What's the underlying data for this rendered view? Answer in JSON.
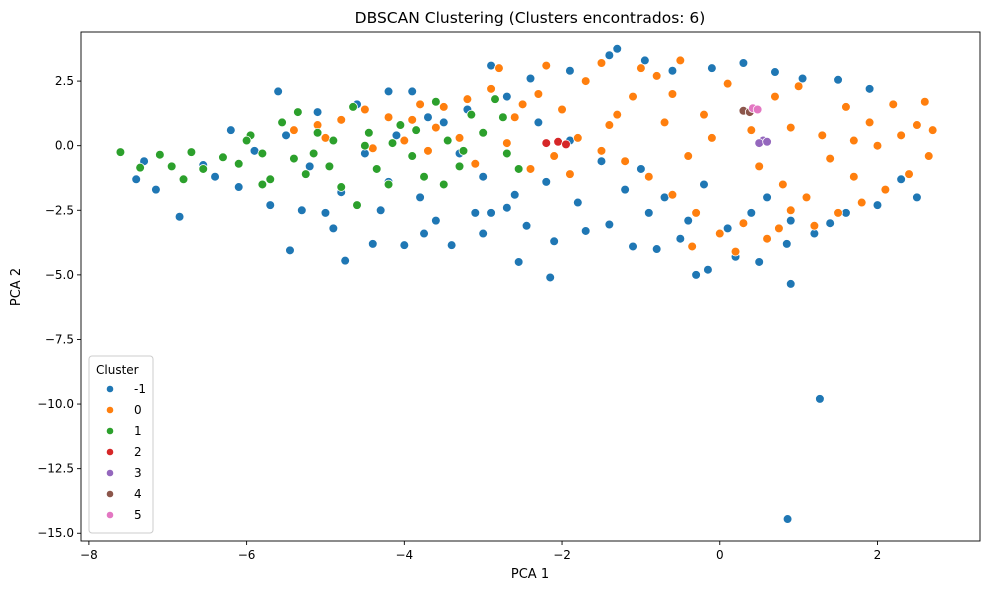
{
  "chart_data": {
    "type": "scatter",
    "title": "DBSCAN Clustering (Clusters encontrados: 6)",
    "xlabel": "PCA 1",
    "ylabel": "PCA 2",
    "xlim": [
      -8.1,
      3.3
    ],
    "ylim": [
      -15.3,
      4.4
    ],
    "x_ticks": [
      -8,
      -6,
      -4,
      -2,
      0,
      2
    ],
    "y_ticks": [
      2.5,
      0.0,
      -2.5,
      -5.0,
      -7.5,
      -10.0,
      -12.5,
      -15.0
    ],
    "grid": false,
    "legend": {
      "title": "Cluster",
      "position": "lower-left"
    },
    "series": [
      {
        "name": "-1",
        "color": "#1f77b4",
        "points": [
          [
            0.86,
            -14.45
          ],
          [
            1.27,
            -9.8
          ],
          [
            0.9,
            -5.35
          ],
          [
            -2.15,
            -5.1
          ],
          [
            -2.55,
            -4.5
          ],
          [
            -4.75,
            -4.45
          ],
          [
            -5.45,
            -4.05
          ],
          [
            -0.3,
            -5.0
          ],
          [
            -0.15,
            -4.8
          ],
          [
            -1.1,
            -3.9
          ],
          [
            -7.3,
            -0.6
          ],
          [
            -7.15,
            -1.7
          ],
          [
            -6.85,
            -2.75
          ],
          [
            -6.4,
            -1.2
          ],
          [
            -6.1,
            -1.6
          ],
          [
            -5.7,
            -2.3
          ],
          [
            -5.3,
            -2.5
          ],
          [
            -4.9,
            -3.2
          ],
          [
            -4.4,
            -3.8
          ],
          [
            -4.0,
            -3.85
          ],
          [
            -3.75,
            -3.4
          ],
          [
            -3.4,
            -3.85
          ],
          [
            -3.0,
            -3.4
          ],
          [
            -2.9,
            -2.6
          ],
          [
            -2.45,
            -3.1
          ],
          [
            -2.1,
            -3.7
          ],
          [
            -1.7,
            -3.3
          ],
          [
            -1.4,
            -3.05
          ],
          [
            -0.8,
            -4.0
          ],
          [
            -0.5,
            -3.6
          ],
          [
            0.2,
            -4.3
          ],
          [
            0.5,
            -4.5
          ],
          [
            0.85,
            -3.8
          ],
          [
            1.2,
            -3.4
          ],
          [
            1.6,
            -2.6
          ],
          [
            2.0,
            -2.3
          ],
          [
            2.3,
            -1.3
          ],
          [
            2.5,
            -2.0
          ],
          [
            -3.7,
            1.1
          ],
          [
            -3.9,
            2.1
          ],
          [
            -4.2,
            2.1
          ],
          [
            -4.6,
            1.6
          ],
          [
            -5.1,
            1.3
          ],
          [
            -5.6,
            2.1
          ],
          [
            -6.2,
            0.6
          ],
          [
            -5.9,
            -0.2
          ],
          [
            -6.55,
            -0.75
          ],
          [
            -7.4,
            -1.3
          ],
          [
            -2.9,
            3.1
          ],
          [
            -2.4,
            2.6
          ],
          [
            -1.9,
            2.9
          ],
          [
            -1.4,
            3.5
          ],
          [
            -1.3,
            3.75
          ],
          [
            -0.95,
            3.3
          ],
          [
            -0.6,
            2.9
          ],
          [
            -0.1,
            3.0
          ],
          [
            0.3,
            3.2
          ],
          [
            0.7,
            2.85
          ],
          [
            1.05,
            2.6
          ],
          [
            1.5,
            2.55
          ],
          [
            1.9,
            2.2
          ],
          [
            -3.3,
            -0.3
          ],
          [
            -3.0,
            -1.2
          ],
          [
            -2.6,
            -1.9
          ],
          [
            -2.2,
            -1.4
          ],
          [
            -1.8,
            -2.2
          ],
          [
            -1.2,
            -1.7
          ],
          [
            -0.9,
            -2.6
          ],
          [
            -0.4,
            -2.9
          ],
          [
            0.1,
            -3.2
          ],
          [
            0.4,
            -2.6
          ],
          [
            -4.3,
            -2.5
          ],
          [
            -3.6,
            -2.9
          ],
          [
            -3.1,
            -2.6
          ],
          [
            -2.7,
            -2.4
          ],
          [
            -4.8,
            -1.8
          ],
          [
            -5.0,
            -2.6
          ],
          [
            -4.1,
            0.4
          ],
          [
            -3.5,
            0.9
          ],
          [
            -3.2,
            1.4
          ],
          [
            -2.7,
            1.9
          ],
          [
            -2.3,
            0.9
          ],
          [
            -1.9,
            0.2
          ],
          [
            -1.5,
            -0.6
          ],
          [
            -1.0,
            -0.9
          ],
          [
            -0.7,
            -2.0
          ],
          [
            -0.2,
            -1.5
          ],
          [
            0.6,
            -2.0
          ],
          [
            0.9,
            -2.9
          ],
          [
            1.4,
            -3.0
          ],
          [
            -5.5,
            0.4
          ],
          [
            -5.2,
            -0.8
          ],
          [
            -4.5,
            -0.3
          ],
          [
            -4.2,
            -1.4
          ],
          [
            -3.8,
            -2.0
          ]
        ]
      },
      {
        "name": "0",
        "color": "#ff7f0e",
        "points": [
          [
            -3.5,
            1.5
          ],
          [
            -3.2,
            1.8
          ],
          [
            -2.9,
            2.2
          ],
          [
            -2.6,
            1.1
          ],
          [
            -2.3,
            2.0
          ],
          [
            -2.0,
            1.4
          ],
          [
            -1.7,
            2.5
          ],
          [
            -1.4,
            0.8
          ],
          [
            -1.1,
            1.9
          ],
          [
            -0.8,
            2.7
          ],
          [
            -0.5,
            3.3
          ],
          [
            -0.2,
            1.2
          ],
          [
            0.1,
            2.4
          ],
          [
            0.4,
            0.6
          ],
          [
            0.7,
            1.9
          ],
          [
            1.0,
            2.3
          ],
          [
            1.3,
            0.4
          ],
          [
            1.6,
            1.5
          ],
          [
            1.9,
            0.9
          ],
          [
            2.2,
            1.6
          ],
          [
            2.5,
            0.8
          ],
          [
            2.7,
            0.6
          ],
          [
            2.65,
            -0.4
          ],
          [
            2.4,
            -1.1
          ],
          [
            2.1,
            -1.7
          ],
          [
            1.8,
            -2.2
          ],
          [
            1.5,
            -2.6
          ],
          [
            1.2,
            -3.1
          ],
          [
            0.9,
            -2.5
          ],
          [
            0.6,
            -3.6
          ],
          [
            0.3,
            -3.0
          ],
          [
            0.0,
            -3.4
          ],
          [
            -0.3,
            -2.6
          ],
          [
            -0.6,
            -1.9
          ],
          [
            -0.9,
            -1.2
          ],
          [
            -1.2,
            -0.6
          ],
          [
            -1.5,
            -0.2
          ],
          [
            -1.8,
            0.3
          ],
          [
            -2.1,
            -0.4
          ],
          [
            -2.4,
            -0.9
          ],
          [
            -2.7,
            0.1
          ],
          [
            -3.0,
            0.5
          ],
          [
            -3.3,
            0.3
          ],
          [
            -3.6,
            0.7
          ],
          [
            -3.9,
            1.0
          ],
          [
            -4.2,
            1.1
          ],
          [
            -4.5,
            1.4
          ],
          [
            -4.8,
            1.0
          ],
          [
            -5.1,
            0.8
          ],
          [
            -5.4,
            0.6
          ],
          [
            -0.35,
            -3.9
          ],
          [
            0.2,
            -4.1
          ],
          [
            0.75,
            -3.2
          ],
          [
            1.1,
            -2.0
          ],
          [
            1.7,
            -1.2
          ],
          [
            2.0,
            0.0
          ],
          [
            2.3,
            0.4
          ],
          [
            -2.8,
            3.0
          ],
          [
            -2.2,
            3.1
          ],
          [
            -1.5,
            3.2
          ],
          [
            -1.0,
            3.0
          ],
          [
            -0.6,
            2.0
          ],
          [
            -0.1,
            0.3
          ],
          [
            0.5,
            -0.8
          ],
          [
            0.8,
            -1.5
          ],
          [
            1.4,
            -0.5
          ],
          [
            1.7,
            0.2
          ],
          [
            -0.4,
            -0.4
          ],
          [
            -1.3,
            1.2
          ],
          [
            -2.5,
            1.6
          ],
          [
            -3.1,
            -0.7
          ],
          [
            -3.7,
            -0.2
          ],
          [
            -4.0,
            0.2
          ],
          [
            -4.4,
            -0.1
          ],
          [
            -5.0,
            0.3
          ],
          [
            -3.8,
            1.6
          ],
          [
            -1.9,
            -1.1
          ],
          [
            -0.7,
            0.9
          ],
          [
            0.9,
            0.7
          ],
          [
            2.6,
            1.7
          ]
        ]
      },
      {
        "name": "1",
        "color": "#2ca02c",
        "points": [
          [
            -7.6,
            -0.25
          ],
          [
            -7.35,
            -0.85
          ],
          [
            -7.1,
            -0.35
          ],
          [
            -6.95,
            -0.8
          ],
          [
            -6.8,
            -1.3
          ],
          [
            -6.7,
            -0.25
          ],
          [
            -6.55,
            -0.9
          ],
          [
            -6.3,
            -0.45
          ],
          [
            -6.1,
            -0.7
          ],
          [
            -5.95,
            0.4
          ],
          [
            -5.8,
            -0.3
          ],
          [
            -5.7,
            -1.3
          ],
          [
            -5.55,
            0.9
          ],
          [
            -5.4,
            -0.5
          ],
          [
            -5.25,
            -1.1
          ],
          [
            -5.1,
            0.5
          ],
          [
            -4.95,
            -0.8
          ],
          [
            -4.8,
            -1.6
          ],
          [
            -4.65,
            1.5
          ],
          [
            -4.5,
            0.0
          ],
          [
            -4.35,
            -0.9
          ],
          [
            -4.2,
            -1.5
          ],
          [
            -4.05,
            0.8
          ],
          [
            -3.9,
            -0.4
          ],
          [
            -3.75,
            -1.2
          ],
          [
            -3.6,
            1.7
          ],
          [
            -3.45,
            0.2
          ],
          [
            -3.3,
            -0.8
          ],
          [
            -3.15,
            1.2
          ],
          [
            -3.0,
            0.5
          ],
          [
            -2.85,
            1.8
          ],
          [
            -2.7,
            -0.3
          ],
          [
            -2.55,
            -0.9
          ],
          [
            -5.35,
            1.3
          ],
          [
            -4.6,
            -2.3
          ],
          [
            -5.8,
            -1.5
          ],
          [
            -6.0,
            0.2
          ],
          [
            -4.15,
            0.1
          ],
          [
            -3.5,
            -1.5
          ],
          [
            -2.75,
            1.1
          ],
          [
            -4.9,
            0.2
          ],
          [
            -5.15,
            -0.3
          ],
          [
            -4.45,
            0.5
          ],
          [
            -3.85,
            0.6
          ],
          [
            -3.25,
            -0.2
          ]
        ]
      },
      {
        "name": "2",
        "color": "#d62728",
        "points": [
          [
            -2.2,
            0.1
          ],
          [
            -2.05,
            0.15
          ],
          [
            -1.95,
            0.05
          ]
        ]
      },
      {
        "name": "3",
        "color": "#9467bd",
        "points": [
          [
            0.55,
            0.2
          ],
          [
            0.5,
            0.1
          ],
          [
            0.6,
            0.15
          ]
        ]
      },
      {
        "name": "4",
        "color": "#8c564b",
        "points": [
          [
            0.3,
            1.35
          ],
          [
            0.38,
            1.3
          ]
        ]
      },
      {
        "name": "5",
        "color": "#e377c2",
        "points": [
          [
            0.42,
            1.45
          ],
          [
            0.48,
            1.4
          ]
        ]
      }
    ]
  }
}
